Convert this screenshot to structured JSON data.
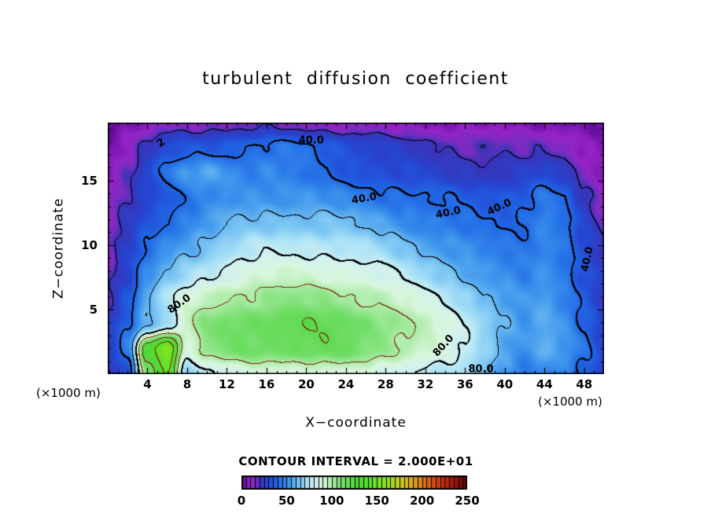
{
  "title": "turbulent diffusion coefficient",
  "chart_data": {
    "type": "heatmap",
    "subtype": "filled-contour",
    "title": "turbulent diffusion coefficient",
    "xlabel": "X−coordinate",
    "ylabel": "Z−coordinate",
    "x_unit_label": "(×1000 m)",
    "y_unit_label": "(×1000 m)",
    "contour_interval_label": "CONTOUR INTERVAL = 2.000E+01",
    "contour_interval": 20,
    "xlim": [
      0,
      50
    ],
    "ylim": [
      0,
      19.5
    ],
    "x_ticks": [
      4,
      8,
      12,
      16,
      20,
      24,
      28,
      32,
      36,
      40,
      44,
      48
    ],
    "x_minor_step": 1,
    "y_ticks": [
      5,
      10,
      15
    ],
    "y_minor_step": 1,
    "grid": {
      "x": [
        0,
        2,
        4,
        6,
        8,
        10,
        12,
        14,
        16,
        18,
        20,
        22,
        24,
        26,
        28,
        30,
        32,
        34,
        36,
        38,
        40,
        42,
        44,
        46,
        48,
        50
      ],
      "z": [
        0,
        1.95,
        3.9,
        5.85,
        7.8,
        9.75,
        11.7,
        13.65,
        15.6,
        17.55,
        19.5
      ],
      "values": [
        [
          18,
          30,
          110,
          140,
          70,
          78,
          82,
          86,
          88,
          90,
          90,
          90,
          88,
          86,
          84,
          82,
          78,
          74,
          70,
          62,
          52,
          46,
          50,
          46,
          36,
          26
        ],
        [
          24,
          45,
          130,
          160,
          88,
          105,
          110,
          113,
          115,
          116,
          117,
          116,
          114,
          110,
          106,
          100,
          93,
          86,
          78,
          68,
          58,
          52,
          58,
          52,
          42,
          30
        ],
        [
          22,
          40,
          60,
          70,
          95,
          108,
          112,
          115,
          117,
          118,
          118,
          117,
          115,
          112,
          108,
          102,
          95,
          88,
          80,
          70,
          60,
          52,
          56,
          50,
          40,
          28
        ],
        [
          20,
          35,
          60,
          75,
          88,
          95,
          100,
          103,
          105,
          106,
          106,
          105,
          103,
          100,
          96,
          90,
          84,
          78,
          70,
          62,
          55,
          50,
          54,
          48,
          38,
          26
        ],
        [
          18,
          30,
          48,
          60,
          70,
          78,
          84,
          88,
          90,
          91,
          91,
          90,
          88,
          85,
          81,
          76,
          70,
          65,
          58,
          52,
          48,
          46,
          52,
          46,
          34,
          24
        ],
        [
          15,
          26,
          40,
          50,
          58,
          64,
          70,
          74,
          77,
          78,
          78,
          77,
          75,
          72,
          68,
          63,
          58,
          54,
          50,
          46,
          44,
          44,
          50,
          44,
          31,
          21
        ],
        [
          12,
          22,
          34,
          42,
          48,
          54,
          58,
          61,
          63,
          64,
          64,
          63,
          61,
          58,
          55,
          51,
          47,
          44,
          42,
          40,
          40,
          42,
          48,
          42,
          27,
          17
        ],
        [
          10,
          20,
          30,
          36,
          42,
          46,
          50,
          52,
          53,
          53,
          52,
          50,
          48,
          46,
          44,
          42,
          40,
          38,
          37,
          36,
          36,
          38,
          44,
          38,
          23,
          13
        ],
        [
          8,
          18,
          32,
          44,
          52,
          56,
          52,
          48,
          50,
          46,
          42,
          38,
          36,
          34,
          32,
          30,
          28,
          26,
          25,
          24,
          24,
          26,
          30,
          26,
          15,
          9
        ],
        [
          5,
          12,
          22,
          30,
          34,
          36,
          38,
          40,
          42,
          43,
          42,
          38,
          34,
          30,
          26,
          24,
          22,
          20,
          19,
          18,
          17,
          16,
          18,
          16,
          9,
          5
        ],
        [
          2,
          4,
          8,
          12,
          14,
          15,
          16,
          16,
          16,
          15,
          14,
          13,
          12,
          11,
          10,
          9,
          8,
          8,
          7,
          7,
          6,
          6,
          7,
          6,
          4,
          2
        ]
      ]
    },
    "contour_labels": [
      {
        "text": "2",
        "x": 5.4,
        "z": 17.9,
        "rot": -35
      },
      {
        "text": "40.0",
        "x": 20.5,
        "z": 18.1,
        "rot": 0
      },
      {
        "text": "40.0",
        "x": 25.8,
        "z": 13.6,
        "rot": -10
      },
      {
        "text": "40.0",
        "x": 34.3,
        "z": 12.5,
        "rot": -12
      },
      {
        "text": "40.0",
        "x": 39.5,
        "z": 12.9,
        "rot": -25
      },
      {
        "text": "40.0",
        "x": 48.3,
        "z": 8.9,
        "rot": -78
      },
      {
        "text": "80.0",
        "x": 7.2,
        "z": 5.4,
        "rot": -35
      },
      {
        "text": "80.0",
        "x": 33.8,
        "z": 2.2,
        "rot": -48
      },
      {
        "text": "80.0",
        "x": 37.6,
        "z": 0.35,
        "rot": 0
      }
    ],
    "colormap": [
      [
        0,
        "#5c0a96"
      ],
      [
        10,
        "#9623c8"
      ],
      [
        16,
        "#7a2cc0"
      ],
      [
        20,
        "#3a33b8"
      ],
      [
        30,
        "#2547d2"
      ],
      [
        40,
        "#1f68e6"
      ],
      [
        52,
        "#3e95ec"
      ],
      [
        63,
        "#77c3f3"
      ],
      [
        73,
        "#abe2f6"
      ],
      [
        82,
        "#d2f1f0"
      ],
      [
        90,
        "#d9f6dc"
      ],
      [
        100,
        "#aaeca6"
      ],
      [
        112,
        "#74de6a"
      ],
      [
        125,
        "#50d73f"
      ],
      [
        140,
        "#53e02b"
      ],
      [
        160,
        "#8ae420"
      ],
      [
        180,
        "#d8c51e"
      ],
      [
        200,
        "#e07818"
      ],
      [
        220,
        "#cc3512"
      ],
      [
        235,
        "#a01208"
      ],
      [
        250,
        "#600606"
      ]
    ],
    "contour_line_colors": {
      "normal": "#000000",
      "high": "#7a2208",
      "high_threshold": 100
    },
    "colorbar": {
      "min": 0,
      "max": 250,
      "ticks": [
        0,
        50,
        100,
        150,
        200,
        250
      ],
      "cell_step": 5
    }
  }
}
